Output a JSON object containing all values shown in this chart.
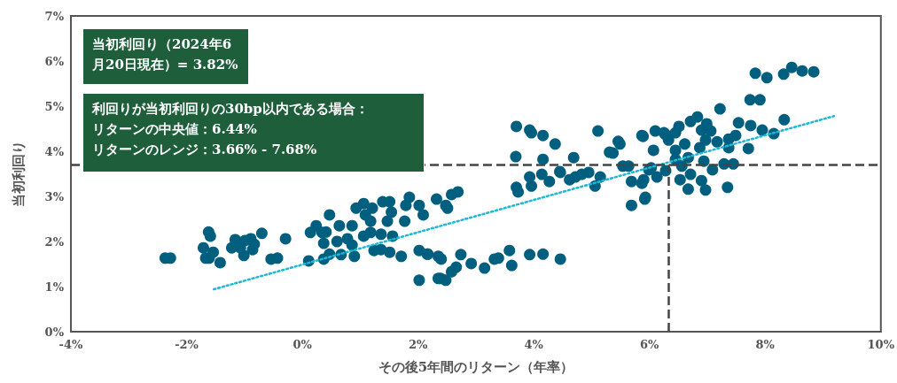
{
  "chart_data": {
    "type": "scatter",
    "xlabel": "その後5年間のリターン（年率）",
    "ylabel": "当初利回り",
    "xlim": [
      -4,
      10
    ],
    "ylim": [
      0,
      7
    ],
    "xticks": [
      {
        "value": -4,
        "label": "-4%"
      },
      {
        "value": -2,
        "label": "-2%"
      },
      {
        "value": 0,
        "label": "0%"
      },
      {
        "value": 2,
        "label": "2%"
      },
      {
        "value": 4,
        "label": "4%"
      },
      {
        "value": 6,
        "label": "6%"
      },
      {
        "value": 8,
        "label": "8%"
      },
      {
        "value": 10,
        "label": "10%"
      }
    ],
    "yticks": [
      {
        "value": 0,
        "label": "0%"
      },
      {
        "value": 1,
        "label": "1%"
      },
      {
        "value": 2,
        "label": "2%"
      },
      {
        "value": 3,
        "label": "3%"
      },
      {
        "value": 4,
        "label": "4%"
      },
      {
        "value": 5,
        "label": "5%"
      },
      {
        "value": 6,
        "label": "6%"
      },
      {
        "value": 7,
        "label": "7%"
      }
    ],
    "grid": false,
    "marker": "circle",
    "series": [
      {
        "color": "#005f7f",
        "x": [
          -2.37,
          -2.28,
          -1.62,
          -1.59,
          -1.71,
          -1.54,
          -1.61,
          -1.67,
          -1.42,
          -1.22,
          -1.16,
          -1.07,
          -0.99,
          -0.89,
          -0.83,
          -0.7,
          -1.01,
          -0.86,
          -0.54,
          -0.43,
          -0.29,
          0.14,
          0.24,
          0.34,
          0.41,
          0.37,
          0.47,
          0.6,
          0.64,
          0.78,
          0.86,
          0.93,
          1.06,
          1.09,
          1.18,
          1.21,
          1.39,
          1.51,
          1.54,
          1.47,
          1.77,
          1.85,
          1.79,
          2.02,
          2.09,
          2.32,
          2.48,
          0.11,
          0.37,
          0.47,
          0.67,
          0.86,
          0.9,
          1.06,
          1.18,
          1.36,
          1.56,
          1.24,
          1.36,
          1.51,
          1.71,
          2.02,
          2.17,
          2.35,
          2.02,
          2.39,
          2.48,
          3.7,
          3.93,
          3.96,
          4.16,
          4.37,
          3.69,
          4.16,
          4.45,
          3.7,
          3.73,
          3.93,
          3.96,
          4.14,
          4.27,
          2.51,
          2.58,
          2.69,
          2.16,
          2.4,
          2.74,
          2.92,
          3.15,
          3.32,
          3.39,
          3.58,
          3.62,
          3.93,
          4.16,
          4.46,
          2.35,
          2.58,
          2.66,
          5.11,
          4.46,
          4.62,
          4.72,
          4.83,
          4.95,
          5.06,
          5.15,
          4.69,
          5.31,
          5.46,
          5.49,
          5.87,
          6.07,
          6.1,
          6.28,
          5.54,
          5.64,
          5.69,
          5.87,
          6.03,
          6.13,
          6.28,
          5.69,
          5.92,
          6.53,
          6.56,
          6.61,
          6.45,
          6.51,
          7.83,
          8.03,
          8.32,
          8.46,
          8.64,
          8.84,
          7.74,
          7.91,
          7.22,
          6.83,
          6.71,
          8.33,
          7.54,
          7.75,
          7.95,
          8.15,
          7.71,
          7.49,
          7.37,
          7.37,
          7.17,
          7.06,
          6.99,
          6.9,
          6.87,
          6.97,
          6.45,
          6.25,
          6.33,
          5.89,
          5.37,
          5.99,
          6.45,
          6.67,
          6.94,
          7.09,
          7.29,
          7.45,
          6.71,
          6.9,
          5.9,
          6.67,
          6.97,
          7.35,
          5.93
        ],
        "values": [
          1.63,
          1.63,
          2.21,
          2.12,
          1.86,
          1.76,
          1.63,
          1.63,
          1.53,
          1.86,
          2.04,
          1.86,
          2.02,
          2.06,
          1.94,
          2.18,
          1.69,
          1.82,
          1.61,
          1.63,
          2.06,
          2.2,
          2.35,
          2.2,
          2.21,
          1.96,
          2.59,
          2.0,
          2.35,
          2.06,
          2.35,
          2.74,
          2.84,
          2.59,
          2.45,
          2.74,
          2.88,
          2.88,
          2.65,
          2.45,
          2.45,
          2.98,
          2.8,
          2.8,
          2.59,
          2.94,
          2.8,
          1.57,
          1.61,
          1.72,
          1.71,
          1.92,
          1.67,
          2.12,
          2.2,
          2.16,
          2.12,
          1.8,
          1.82,
          1.76,
          1.67,
          1.8,
          1.72,
          1.67,
          1.14,
          1.18,
          1.14,
          4.55,
          4.47,
          4.41,
          4.35,
          4.16,
          3.88,
          3.82,
          3.55,
          3.2,
          3.1,
          3.43,
          3.23,
          3.49,
          3.33,
          2.74,
          3.04,
          3.1,
          1.72,
          1.61,
          1.71,
          1.51,
          1.41,
          1.61,
          1.63,
          1.8,
          1.47,
          1.71,
          1.72,
          1.61,
          1.18,
          1.33,
          1.43,
          4.45,
          3.53,
          3.37,
          3.43,
          3.49,
          3.53,
          3.23,
          3.43,
          3.86,
          3.98,
          4.22,
          4.16,
          4.35,
          4.02,
          4.45,
          4.37,
          3.67,
          3.67,
          3.33,
          3.29,
          3.63,
          3.43,
          3.57,
          2.8,
          2.94,
          3.37,
          3.67,
          4.16,
          4.02,
          4.55,
          5.73,
          5.63,
          5.71,
          5.86,
          5.78,
          5.76,
          5.14,
          5.14,
          4.94,
          4.76,
          4.66,
          4.7,
          4.63,
          4.57,
          4.47,
          4.39,
          4.06,
          4.35,
          4.27,
          4.08,
          4.21,
          4.45,
          4.61,
          4.47,
          4.08,
          4.25,
          4.41,
          4.41,
          4.25,
          4.33,
          3.96,
          3.59,
          3.82,
          3.86,
          3.78,
          3.59,
          3.72,
          3.72,
          3.49,
          3.35,
          3.37,
          3.16,
          3.14,
          3.2,
          2.98
        ]
      },
      {
        "type": "line",
        "color": "#1cb8d4",
        "line_style": "dotted",
        "marker": "none",
        "x": [
          -1.53,
          9.19
        ],
        "values": [
          0.94,
          4.78
        ]
      }
    ],
    "ref_lines": [
      {
        "axis": "y",
        "value": 3.7,
        "color": "#444444",
        "line_style": "dashed"
      },
      {
        "axis": "x",
        "value": 6.33,
        "color": "#444444",
        "line_style": "dashed"
      }
    ],
    "annotations": [
      "当初利回り（2024年6月20日現在）= 3.82%",
      "利回りが当初利回りの30bp以内である場合：",
      "リターンの中央値：6.44%",
      "リターンのレンジ：3.66% - 7.68%"
    ]
  }
}
